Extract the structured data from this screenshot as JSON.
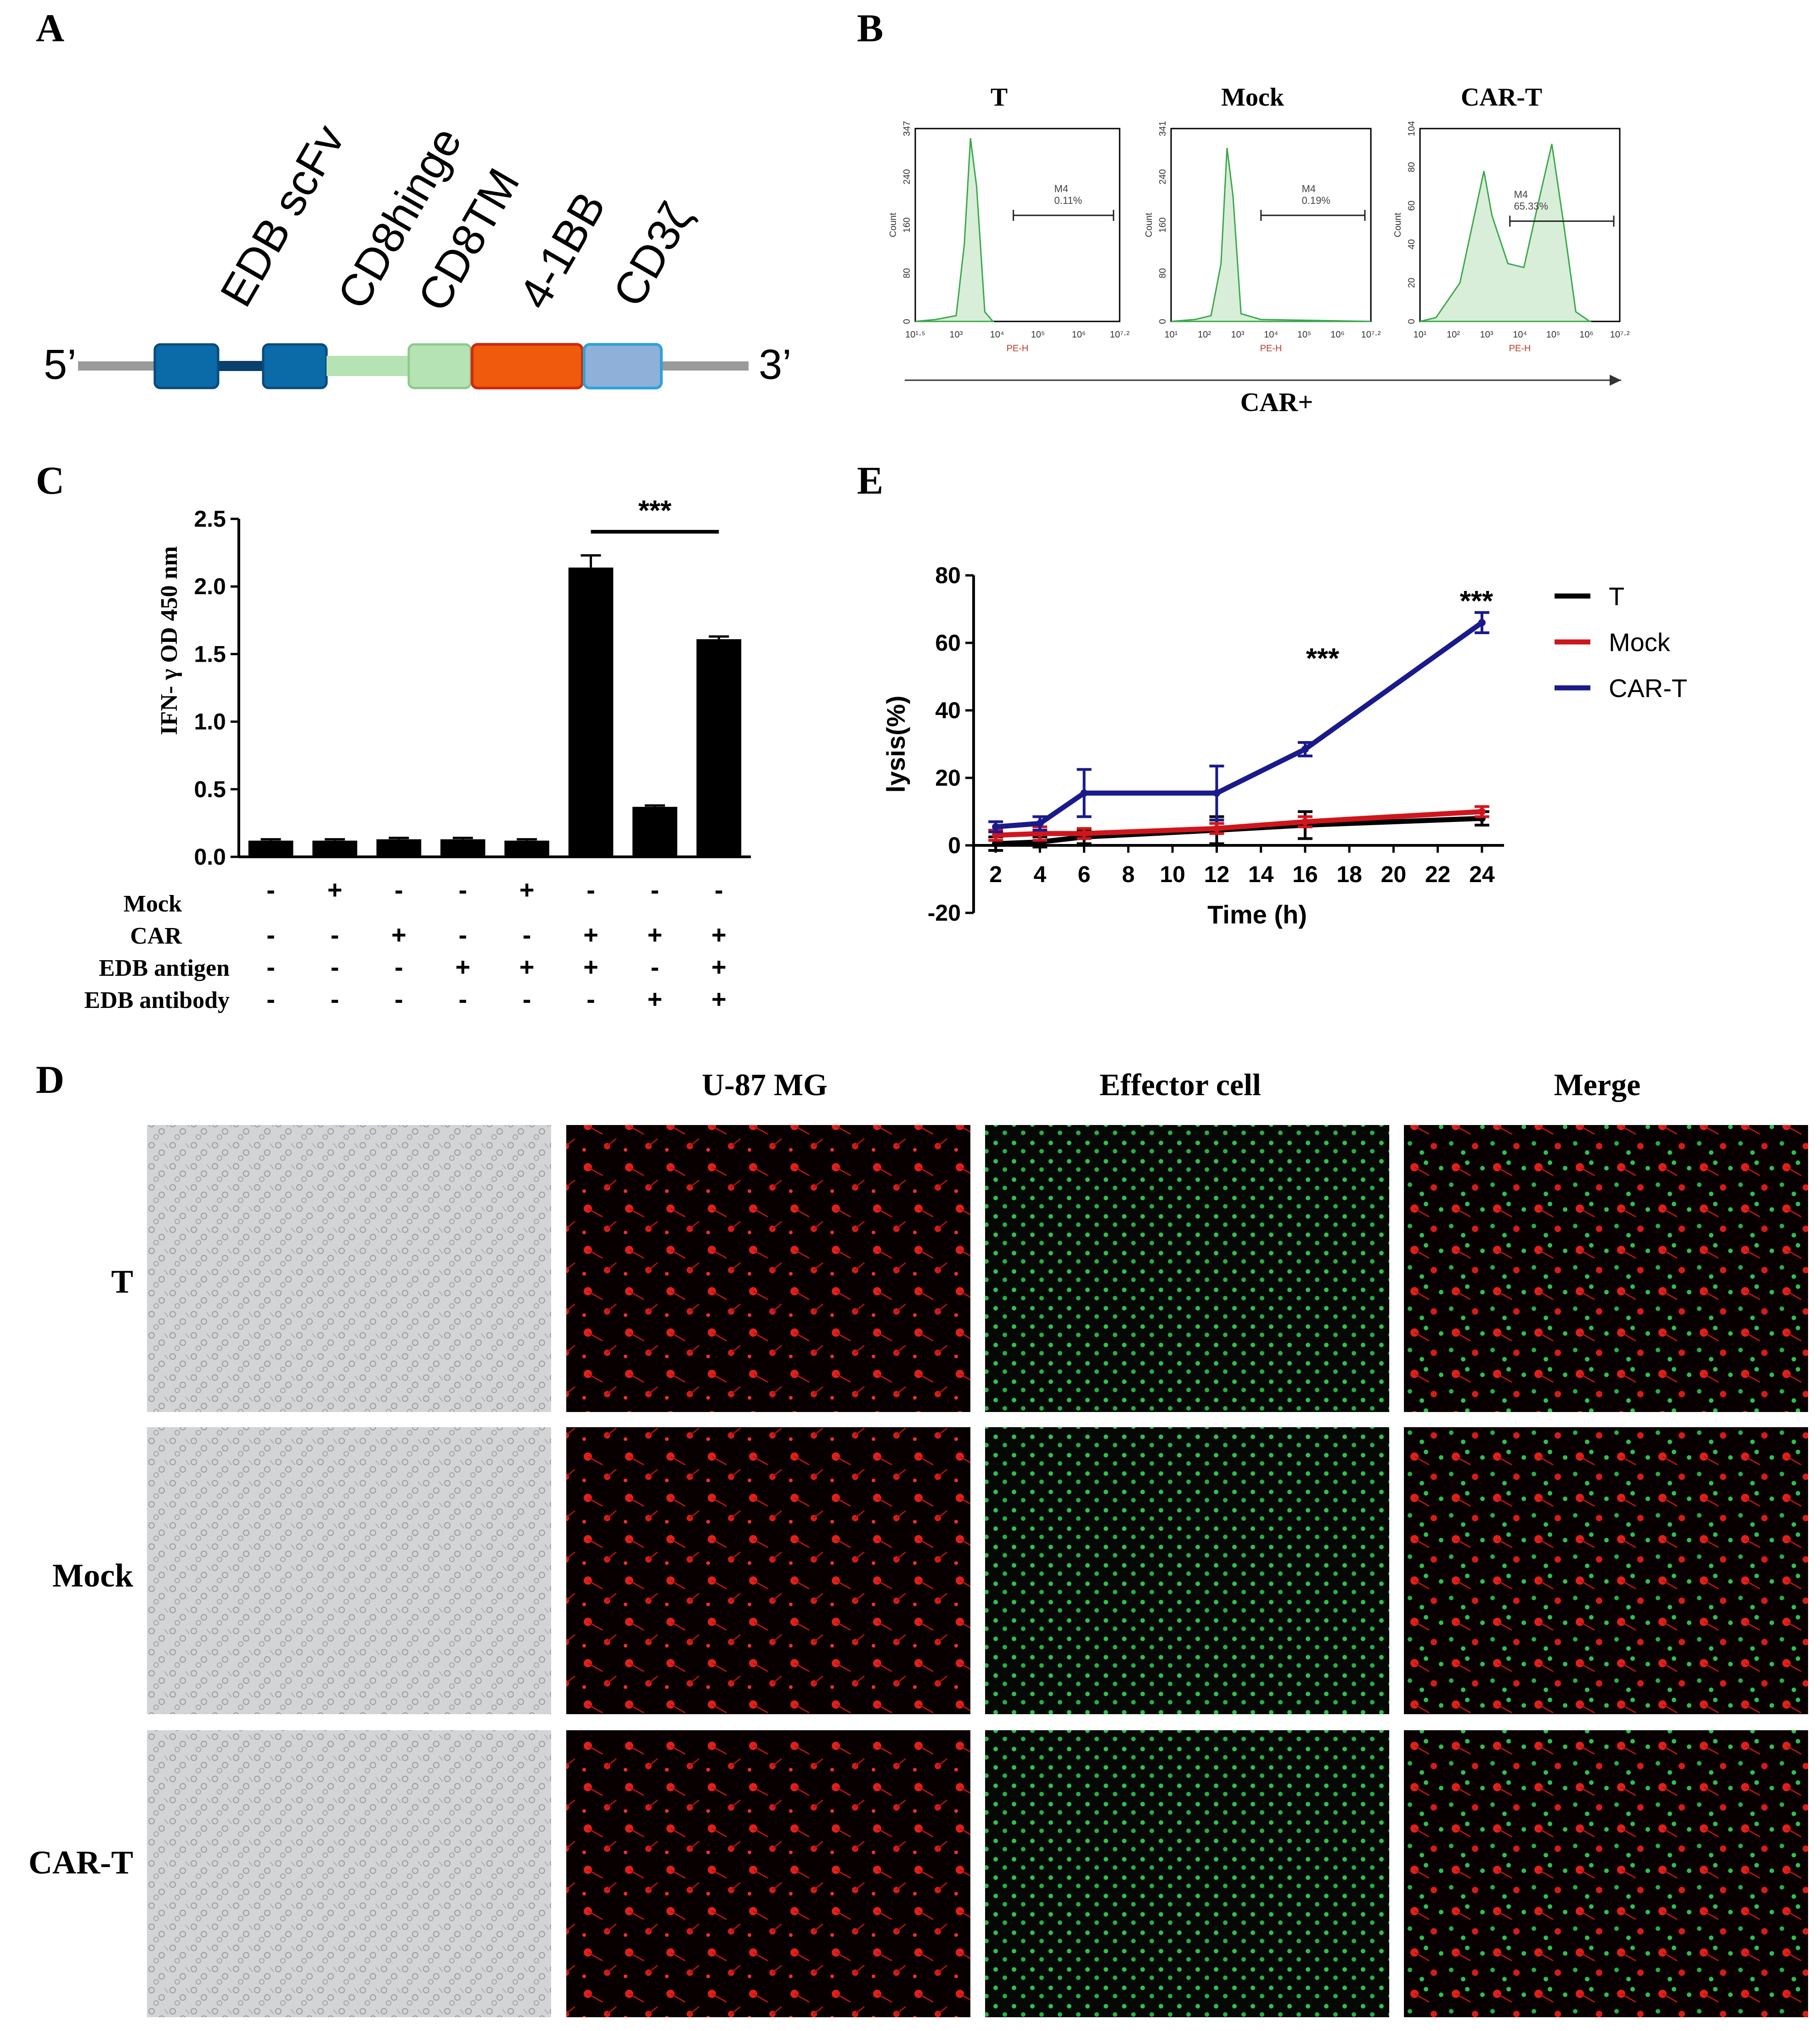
{
  "panels": {
    "A": "A",
    "B": "B",
    "C": "C",
    "D": "D",
    "E": "E"
  },
  "panelA": {
    "five_prime": "5’",
    "three_prime": "3’",
    "domains": [
      {
        "label": "EDB scFv",
        "color": "#0b6aa8"
      },
      {
        "label": "CD8hinge",
        "color": "#b5e3b3"
      },
      {
        "label": "CD8TM",
        "color": "#b5e3b3"
      },
      {
        "label": "4-1BB",
        "color": "#f05a0c"
      },
      {
        "label": "CD3ζ",
        "color": "#8fb0d8"
      }
    ]
  },
  "panelB": {
    "arrow_label": "CAR+",
    "y_axis_label": "Count",
    "x_axis_label": "PE-H",
    "gate_name": "M4",
    "plots": [
      {
        "title": "T",
        "gate_percent": "0.11%",
        "y_ticks": [
          "0",
          "80",
          "160",
          "240",
          "347"
        ],
        "x_ticks": [
          "10¹·⁵",
          "10³",
          "10⁴",
          "10⁵",
          "10⁶",
          "10⁷·²"
        ]
      },
      {
        "title": "Mock",
        "gate_percent": "0.19%",
        "y_ticks": [
          "0",
          "80",
          "160",
          "240",
          "341"
        ],
        "x_ticks": [
          "10¹",
          "10²",
          "10³",
          "10⁴",
          "10⁵",
          "10⁶",
          "10⁷·²"
        ]
      },
      {
        "title": "CAR-T",
        "gate_percent": "65.33%",
        "y_ticks": [
          "0",
          "20",
          "40",
          "60",
          "80",
          "104"
        ],
        "x_ticks": [
          "10¹",
          "10²",
          "10³",
          "10⁴",
          "10⁵",
          "10⁶",
          "10⁷·²"
        ]
      }
    ]
  },
  "panelC": {
    "ylabel": "IFN- γ  OD 450 nm",
    "significance": "***",
    "row_labels": [
      "Mock",
      "CAR",
      "EDB antigen",
      "EDB antibody"
    ],
    "conditions": [
      [
        "-",
        "-",
        "-",
        "-"
      ],
      [
        "+",
        "-",
        "-",
        "-"
      ],
      [
        "-",
        "+",
        "-",
        "-"
      ],
      [
        "-",
        "-",
        "+",
        "-"
      ],
      [
        "+",
        "-",
        "+",
        "-"
      ],
      [
        "-",
        "+",
        "+",
        "-"
      ],
      [
        "-",
        "+",
        "-",
        "+"
      ],
      [
        "-",
        "+",
        "+",
        "+"
      ]
    ]
  },
  "panelD": {
    "col_headers": [
      "U-87 MG",
      "Effector cell",
      "Merge"
    ],
    "row_labels": [
      "T",
      "Mock",
      "CAR-T"
    ]
  },
  "panelE": {
    "significance_labels": [
      "***",
      "***"
    ]
  },
  "chart_data": [
    {
      "type": "bar",
      "panel": "C",
      "title": "",
      "xlabel": "",
      "ylabel": "IFN- γ  OD 450 nm",
      "ylim": [
        0,
        2.5
      ],
      "yticks": [
        "0.0",
        "0.5",
        "1.0",
        "1.5",
        "2.0",
        "2.5"
      ],
      "categories": [
        "1",
        "2",
        "3",
        "4",
        "5",
        "6",
        "7",
        "8"
      ],
      "values": [
        0.12,
        0.12,
        0.13,
        0.13,
        0.12,
        2.14,
        0.37,
        1.61
      ],
      "errors": [
        0.01,
        0.01,
        0.01,
        0.01,
        0.01,
        0.09,
        0.01,
        0.02
      ],
      "bar_color": "#000000"
    },
    {
      "type": "line",
      "panel": "E",
      "title": "",
      "xlabel": "Time (h)",
      "ylabel": "lysis(%)",
      "xlim": [
        1,
        25
      ],
      "ylim": [
        -20,
        80
      ],
      "xticks": [
        "2",
        "4",
        "6",
        "8",
        "10",
        "12",
        "14",
        "16",
        "18",
        "20",
        "22",
        "24"
      ],
      "yticks": [
        "-20",
        "0",
        "20",
        "40",
        "60",
        "80"
      ],
      "legend_position": "right",
      "series": [
        {
          "name": "T",
          "color": "#000000",
          "x": [
            2,
            4,
            6,
            12,
            16,
            24
          ],
          "y": [
            0.5,
            1,
            2.5,
            4.5,
            6,
            8
          ],
          "err": [
            2,
            1.5,
            2,
            4,
            4,
            2
          ]
        },
        {
          "name": "Mock",
          "color": "#d0161c",
          "x": [
            2,
            4,
            6,
            12,
            16,
            24
          ],
          "y": [
            3,
            3.5,
            3.5,
            5,
            7,
            10
          ],
          "err": [
            1.5,
            2,
            1.5,
            1.5,
            1.5,
            1.5
          ]
        },
        {
          "name": "CAR-T",
          "color": "#1a1a8c",
          "x": [
            2,
            4,
            6,
            12,
            16,
            24
          ],
          "y": [
            5.5,
            6.5,
            15.5,
            15.5,
            28.5,
            66
          ],
          "err": [
            1.5,
            2,
            7,
            8,
            2,
            3
          ]
        }
      ]
    }
  ]
}
